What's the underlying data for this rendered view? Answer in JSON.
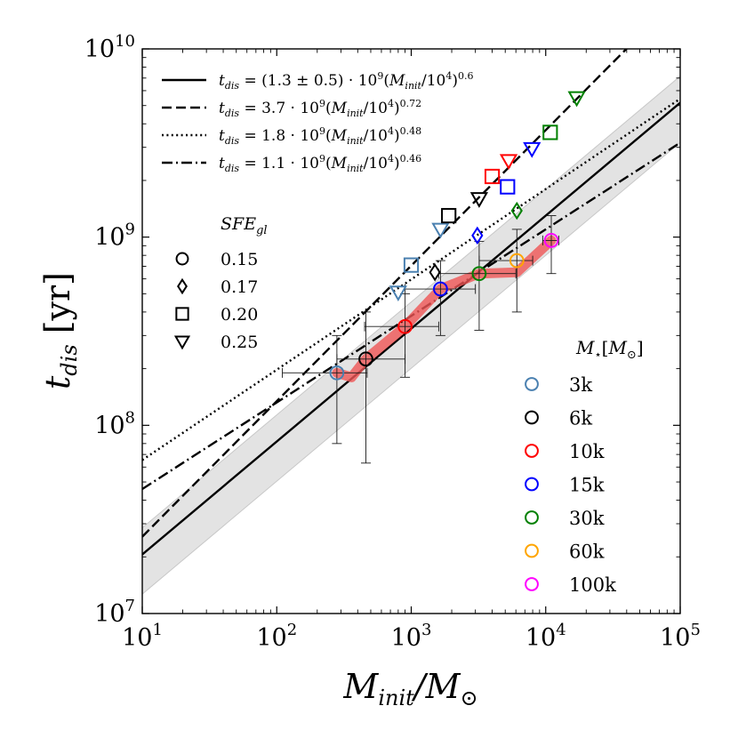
{
  "chart_data": {
    "type": "scatter",
    "scale": "log-log",
    "xlabel": "M_init/M_⊙",
    "ylabel": "t_dis [yr]",
    "xlim": [
      10,
      100000
    ],
    "ylim": [
      10000000,
      10000000000
    ],
    "x_ticks": [
      {
        "value": 10,
        "base": "10",
        "exp": "1"
      },
      {
        "value": 100,
        "base": "10",
        "exp": "2"
      },
      {
        "value": 1000,
        "base": "10",
        "exp": "3"
      },
      {
        "value": 10000,
        "base": "10",
        "exp": "4"
      },
      {
        "value": 100000,
        "base": "10",
        "exp": "5"
      }
    ],
    "y_ticks": [
      {
        "value": 10000000,
        "base": "10",
        "exp": "7"
      },
      {
        "value": 100000000,
        "base": "10",
        "exp": "8"
      },
      {
        "value": 1000000000,
        "base": "10",
        "exp": "9"
      },
      {
        "value": 10000000000,
        "base": "10",
        "exp": "10"
      }
    ],
    "fit_lines": [
      {
        "name": "fit-solid",
        "style": "solid",
        "A": 1300000000,
        "alpha": 0.6,
        "label": "t_dis = (1.3 ± 0.5) · 10^9 (M_init/10^4)^0.6",
        "band": [
          0.8,
          1.8
        ]
      },
      {
        "name": "fit-dashed",
        "style": "dashed",
        "A": 3700000000,
        "alpha": 0.72,
        "label": "t_dis = 3.7 · 10^9 (M_init/10^4)^0.72"
      },
      {
        "name": "fit-dotted",
        "style": "dotted",
        "A": 1800000000,
        "alpha": 0.48,
        "label": "t_dis = 1.8 · 10^9 (M_init/10^4)^0.48"
      },
      {
        "name": "fit-dashdot",
        "style": "dashdot",
        "A": 1100000000,
        "alpha": 0.46,
        "label": "t_dis = 1.1 · 10^9 (M_init/10^4)^0.46"
      }
    ],
    "sfe_legend": {
      "title": "SFE_gl",
      "items": [
        {
          "marker": "circle",
          "label": "0.15"
        },
        {
          "marker": "diamond",
          "label": "0.17"
        },
        {
          "marker": "square",
          "label": "0.20"
        },
        {
          "marker": "triangle",
          "label": "0.25"
        }
      ]
    },
    "mass_legend": {
      "title": "M_⋆[M_⊙]",
      "items": [
        {
          "label": "3k",
          "color": "#4a80b0"
        },
        {
          "label": "6k",
          "color": "#000000"
        },
        {
          "label": "10k",
          "color": "#ff0000"
        },
        {
          "label": "15k",
          "color": "#0000ff"
        },
        {
          "label": "30k",
          "color": "#008000"
        },
        {
          "label": "60k",
          "color": "#ffa500"
        },
        {
          "label": "100k",
          "color": "#ff00ff"
        }
      ]
    },
    "circle_points": [
      {
        "x": 280,
        "y": 190000000,
        "xlo": 110,
        "xhi": 470,
        "ylo": 80000000,
        "yhi": 300000000,
        "color": "#4a80b0"
      },
      {
        "x": 460,
        "y": 225000000,
        "xlo": 280,
        "xhi": 900,
        "ylo": 63000000,
        "yhi": 400000000,
        "color": "#000000"
      },
      {
        "x": 900,
        "y": 335000000,
        "xlo": 450,
        "xhi": 1600,
        "ylo": 180000000,
        "yhi": 500000000,
        "color": "#ff0000"
      },
      {
        "x": 1650,
        "y": 530000000,
        "xlo": 900,
        "xhi": 3000,
        "ylo": 300000000,
        "yhi": 750000000,
        "color": "#0000ff"
      },
      {
        "x": 3200,
        "y": 640000000,
        "xlo": 1600,
        "xhi": 6000,
        "ylo": 320000000,
        "yhi": 950000000,
        "color": "#008000"
      },
      {
        "x": 6100,
        "y": 750000000,
        "xlo": 3200,
        "xhi": 8000,
        "ylo": 400000000,
        "yhi": 1100000000,
        "color": "#ffa500"
      },
      {
        "x": 11000,
        "y": 960000000,
        "xlo": 9500,
        "xhi": 12500,
        "ylo": 640000000,
        "yhi": 1300000000,
        "color": "#ff00ff"
      }
    ],
    "sfe_points": [
      {
        "marker": "triangle",
        "x": 800,
        "y": 510000000,
        "color": "#4a80b0"
      },
      {
        "marker": "diamond",
        "x": 1500,
        "y": 650000000,
        "color": "#000000"
      },
      {
        "marker": "square",
        "x": 1000,
        "y": 710000000,
        "color": "#4a80b0"
      },
      {
        "marker": "triangle",
        "x": 1650,
        "y": 1100000000,
        "color": "#4a80b0"
      },
      {
        "marker": "square",
        "x": 1900,
        "y": 1300000000,
        "color": "#000000"
      },
      {
        "marker": "triangle",
        "x": 3200,
        "y": 1600000000,
        "color": "#000000"
      },
      {
        "marker": "diamond",
        "x": 3100,
        "y": 1020000000,
        "color": "#0000ff"
      },
      {
        "marker": "square",
        "x": 4000,
        "y": 2100000000,
        "color": "#ff0000"
      },
      {
        "marker": "triangle",
        "x": 5300,
        "y": 2550000000,
        "color": "#ff0000"
      },
      {
        "marker": "square",
        "x": 5200,
        "y": 1850000000,
        "color": "#0000ff"
      },
      {
        "marker": "diamond",
        "x": 6100,
        "y": 1380000000,
        "color": "#008000"
      },
      {
        "marker": "triangle",
        "x": 7900,
        "y": 2950000000,
        "color": "#0000ff"
      },
      {
        "marker": "square",
        "x": 10800,
        "y": 3600000000,
        "color": "#008000"
      },
      {
        "marker": "triangle",
        "x": 17000,
        "y": 5500000000,
        "color": "#008000"
      }
    ],
    "red_band": [
      [
        280,
        190000000
      ],
      [
        360,
        180000000
      ],
      [
        460,
        225000000
      ],
      [
        900,
        335000000
      ],
      [
        1650,
        530000000
      ],
      [
        3200,
        640000000
      ],
      [
        6100,
        650000000
      ],
      [
        11000,
        960000000
      ]
    ]
  }
}
